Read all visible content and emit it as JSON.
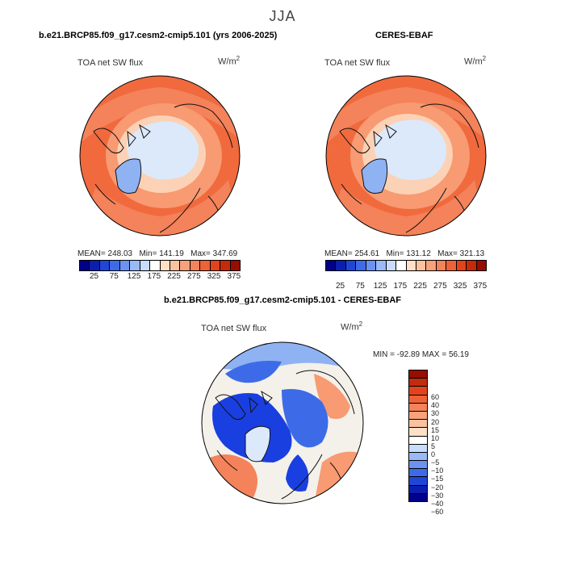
{
  "figure": {
    "season": "JJA"
  },
  "panel_left": {
    "title": "b.e21.BRCP85.f09_g17.cesm2-cmip5.101 (yrs 2006-2025)",
    "variable": "TOA net SW flux",
    "units_base": "W/m",
    "units_exp": "2",
    "stats": {
      "mean_label": "MEAN=",
      "mean": "248.03",
      "min_label": "Min=",
      "min": "141.19",
      "max_label": "Max=",
      "max": "347.69"
    }
  },
  "panel_right": {
    "title": "CERES-EBAF",
    "variable": "TOA net SW flux",
    "units_base": "W/m",
    "units_exp": "2",
    "stats": {
      "mean_label": "MEAN=",
      "mean": "254.61",
      "min_label": "Min=",
      "min": "131.12",
      "max_label": "Max=",
      "max": "321.13"
    }
  },
  "panel_diff": {
    "title": "b.e21.BRCP85.f09_g17.cesm2-cmip5.101 - CERES-EBAF",
    "variable": "TOA net SW flux",
    "units_base": "W/m",
    "units_exp": "2",
    "stats": {
      "min_label": "MIN =",
      "min": "-92.89",
      "max_label": "MAX =",
      "max": "56.19"
    }
  },
  "colorbar_abs": {
    "colors": [
      "#00008a",
      "#0a1fb0",
      "#1f46d6",
      "#3d6be8",
      "#6c93f2",
      "#9ab9f7",
      "#c8dcfb",
      "#ffffff",
      "#fde0c6",
      "#fbc2a0",
      "#f8a27c",
      "#f4825a",
      "#ee6238",
      "#e2431c",
      "#c42a0c",
      "#990c00"
    ],
    "tick_labels": [
      "25",
      "75",
      "125",
      "175",
      "225",
      "275",
      "325",
      "375"
    ]
  },
  "colorbar_diff": {
    "colors": [
      "#990c00",
      "#c42a0c",
      "#e2431c",
      "#ee6238",
      "#f4825a",
      "#f8a27c",
      "#fbc2a0",
      "#fde0c6",
      "#ffffff",
      "#c8dcfb",
      "#9ab9f7",
      "#6c93f2",
      "#3d6be8",
      "#1f46d6",
      "#0a1fb0",
      "#00008a"
    ],
    "tick_labels": [
      "60",
      "40",
      "30",
      "20",
      "15",
      "10",
      "5",
      "0",
      "−5",
      "−10",
      "−15",
      "−20",
      "−30",
      "−40",
      "−60"
    ]
  },
  "map_colors": {
    "ocean_warm": "#f06a3e",
    "mid_warm": "#f89a72",
    "light_warm": "#fcd2b6",
    "ice_light": "#dbe9fb",
    "ice_mid": "#8fb2f2",
    "coast": "#111111",
    "diff_blue": "#1a3fe0",
    "diff_lightblue": "#8fb2f2",
    "diff_pale": "#f4f0ea",
    "diff_red": "#f4825a"
  }
}
